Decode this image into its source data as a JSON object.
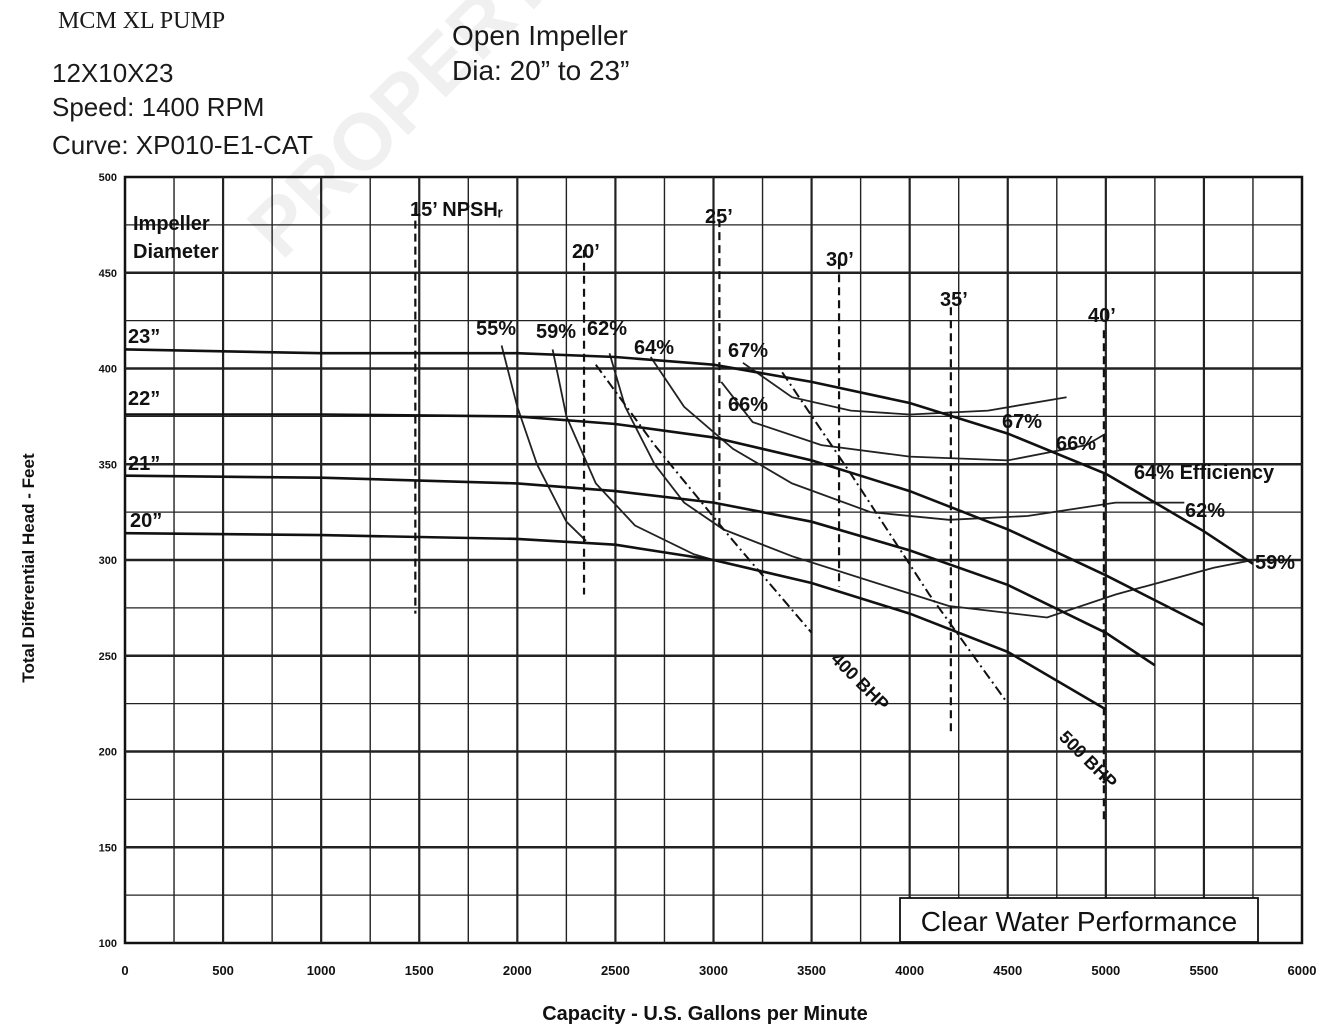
{
  "header": {
    "title": "MCM XL PUMP",
    "model": "12X10X23",
    "speed": "Speed: 1400 RPM",
    "curve": "Curve: XP010-E1-CAT",
    "impeller_type": "Open Impeller",
    "diameter_range": "Dia: 20” to 23”"
  },
  "watermark": "PROPERTY OF ALG",
  "chart_data": {
    "type": "line",
    "title": "",
    "xlabel": "Capacity - U.S. Gallons per Minute",
    "ylabel": "Total Differential Head - Feet",
    "xlim": [
      0,
      6000
    ],
    "ylim": [
      100,
      500
    ],
    "x_ticks": [
      0,
      500,
      1000,
      1500,
      2000,
      2500,
      3000,
      3500,
      4000,
      4500,
      5000,
      5500,
      6000
    ],
    "y_ticks": [
      100,
      150,
      200,
      250,
      300,
      350,
      400,
      450,
      500
    ],
    "grid": true,
    "legend": "none",
    "impeller_header": [
      "Impeller",
      "Diameter"
    ],
    "performance_note": "Clear Water Performance",
    "head_curves": [
      {
        "name": "23”",
        "x": [
          0,
          1000,
          2000,
          2500,
          3000,
          3500,
          4000,
          4500,
          5000,
          5500,
          5750
        ],
        "y": [
          410,
          408,
          408,
          406,
          402,
          393,
          382,
          366,
          345,
          315,
          298
        ]
      },
      {
        "name": "22”",
        "x": [
          0,
          1000,
          2000,
          2500,
          3000,
          3500,
          4000,
          4500,
          5000,
          5500
        ],
        "y": [
          376,
          376,
          375,
          371,
          364,
          352,
          336,
          316,
          292,
          266
        ]
      },
      {
        "name": "21”",
        "x": [
          0,
          1000,
          2000,
          2500,
          3000,
          3500,
          4000,
          4500,
          5000,
          5250
        ],
        "y": [
          344,
          343,
          340,
          336,
          330,
          320,
          305,
          287,
          262,
          245
        ]
      },
      {
        "name": "20”",
        "x": [
          0,
          1000,
          2000,
          2500,
          3000,
          3500,
          4000,
          4500,
          5000
        ],
        "y": [
          314,
          313,
          311,
          308,
          300,
          288,
          272,
          252,
          222
        ]
      }
    ],
    "efficiency_curves": [
      {
        "name": "55%",
        "x": [
          1920,
          2000,
          2100,
          2250,
          2350
        ],
        "y": [
          412,
          380,
          350,
          320,
          310
        ]
      },
      {
        "name": "59%",
        "x": [
          2180,
          2250,
          2400,
          2600,
          2900,
          3000
        ],
        "y": [
          410,
          375,
          340,
          318,
          303,
          300
        ]
      },
      {
        "name": "62%",
        "x": [
          2470,
          2550,
          2700,
          2850,
          3050,
          3400,
          3800,
          4200,
          4700,
          5050,
          5550,
          5750
        ],
        "y": [
          408,
          380,
          350,
          330,
          316,
          302,
          289,
          276,
          270,
          282,
          296,
          300
        ]
      },
      {
        "name": "64%",
        "x": [
          2680,
          2850,
          3100,
          3400,
          3800,
          4200,
          4600,
          5050,
          5400
        ],
        "y": [
          406,
          380,
          358,
          340,
          325,
          321,
          323,
          330,
          330
        ]
      },
      {
        "name": "66%",
        "x": [
          3040,
          3200,
          3550,
          4000,
          4500,
          4900,
          5000
        ],
        "y": [
          393,
          372,
          360,
          354,
          352,
          360,
          366
        ]
      },
      {
        "name": "67%",
        "x": [
          3150,
          3400,
          3700,
          4000,
          4400,
          4800
        ],
        "y": [
          403,
          385,
          378,
          376,
          378,
          385
        ]
      }
    ],
    "npsh_lines": [
      {
        "name": "15’ NPSHᵣ",
        "x": 1480,
        "y_top": 484,
        "y_bottom": 272
      },
      {
        "name": "20’",
        "x": 2340,
        "y_top": 462,
        "y_bottom": 282
      },
      {
        "name": "25’",
        "x": 3030,
        "y_top": 478,
        "y_bottom": 318
      },
      {
        "name": "30’",
        "x": 3640,
        "y_top": 456,
        "y_bottom": 286
      },
      {
        "name": "35’",
        "x": 4210,
        "y_top": 432,
        "y_bottom": 208
      },
      {
        "name": "40’",
        "x": 4990,
        "y_top": 420,
        "y_bottom": 162
      }
    ],
    "bhp_lines": [
      {
        "name": "400 BHP",
        "x": [
          2400,
          2700,
          3100,
          3500
        ],
        "y": [
          402,
          360,
          310,
          262
        ]
      },
      {
        "name": "500 BHP",
        "x": [
          3350,
          3700,
          4100,
          4500
        ],
        "y": [
          398,
          345,
          282,
          225
        ]
      }
    ],
    "efficiency_labels": [
      "55%",
      "59%",
      "62%",
      "64%",
      "67%",
      "66%",
      "67%",
      "66%",
      "64% Efficiency",
      "62%",
      "59%"
    ]
  }
}
